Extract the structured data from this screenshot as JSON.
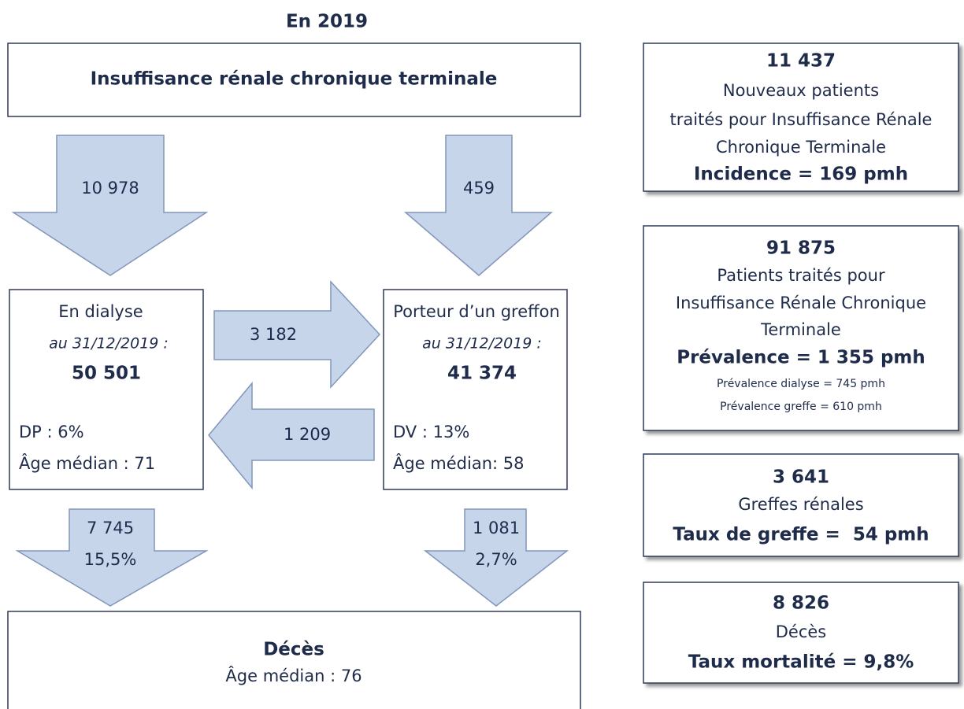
{
  "title": "En 2019",
  "top_box": {
    "label": "Insuffisance rénale chronique terminale"
  },
  "flows": {
    "to_dialysis": "10 978",
    "to_graft": "459",
    "dialysis_to_graft": "3 182",
    "graft_to_dialysis": "1 209",
    "dialysis_deaths": [
      "7 745",
      "15,5%"
    ],
    "graft_deaths": [
      "1 081",
      "2,7%"
    ]
  },
  "dialysis_box": {
    "title": "En dialyse",
    "date": "au 31/12/2019 :",
    "count": "50 501",
    "stat": "DP : 6%",
    "age": "Âge médian : 71"
  },
  "graft_box": {
    "title": "Porteur d’un greffon",
    "date": "au 31/12/2019 :",
    "count": "41 374",
    "stat": "DV : 13%",
    "age": "Âge médian: 58"
  },
  "death_box": {
    "title": "Décès",
    "age": "Âge médian : 76"
  },
  "side_boxes": [
    {
      "count": "11 437",
      "lines": [
        "Nouveaux patients",
        "traités pour Insuffisance Rénale",
        "Chronique Terminale"
      ],
      "rate": "Incidence = 169 pmh"
    },
    {
      "count": "91 875",
      "lines": [
        "Patients traités pour",
        "Insuffisance Rénale Chronique",
        "Terminale"
      ],
      "rate": "Prévalence = 1 355 pmh",
      "notes": [
        "Prévalence dialyse = 745 pmh",
        "Prévalence greffe = 610 pmh"
      ]
    },
    {
      "count": "3 641",
      "lines": [
        "Greffes rénales"
      ],
      "rate": "Taux de greffe =  54 pmh"
    },
    {
      "count": "8 826",
      "lines": [
        "Décès"
      ],
      "rate": "Taux mortalité = 9,8%"
    }
  ]
}
